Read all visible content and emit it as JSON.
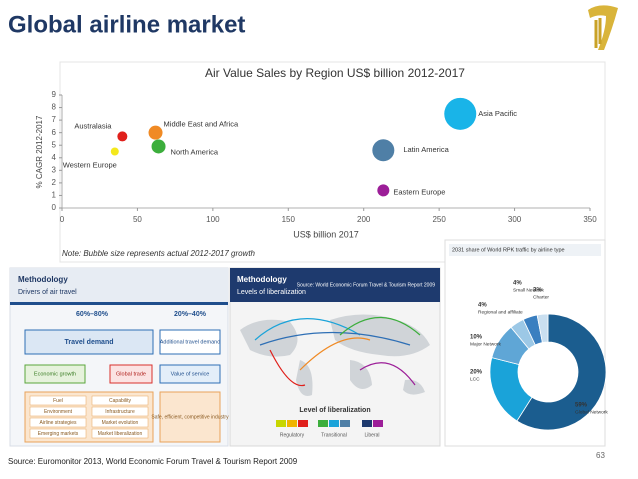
{
  "header": {
    "title": "Global airline market"
  },
  "chart_data": [
    {
      "type": "scatter",
      "title": "Air Value Sales by Region US$ billion 2012-2017",
      "x_label": "US$ billion 2017",
      "y_label": "% CAGR 2012-2017",
      "note": "Note: Bubble size represents actual 2012-2017 growth",
      "xlim": [
        0,
        350
      ],
      "xticks": [
        0,
        50,
        100,
        150,
        200,
        250,
        300,
        350
      ],
      "ylim": [
        0,
        9
      ],
      "yticks": [
        0,
        1,
        2,
        3,
        4,
        5,
        6,
        7,
        8,
        9
      ],
      "series": [
        {
          "name": "Australasia",
          "color": "#e0201b",
          "x": [
            40
          ],
          "values": [
            5.7
          ],
          "sizes": [
            5
          ]
        },
        {
          "name": "Middle East and Africa",
          "color": "#f08a24",
          "x": [
            62
          ],
          "values": [
            6.0
          ],
          "sizes": [
            7
          ]
        },
        {
          "name": "North America",
          "color": "#3cae3c",
          "x": [
            64
          ],
          "values": [
            4.9
          ],
          "sizes": [
            7
          ]
        },
        {
          "name": "Western Europe",
          "color": "#f4e81c",
          "x": [
            35
          ],
          "values": [
            4.5
          ],
          "sizes": [
            4
          ]
        },
        {
          "name": "Asia Pacific",
          "color": "#19b4e8",
          "x": [
            264
          ],
          "values": [
            7.5
          ],
          "sizes": [
            16
          ]
        },
        {
          "name": "Latin America",
          "color": "#4f7fa6",
          "x": [
            213
          ],
          "values": [
            4.6
          ],
          "sizes": [
            11
          ]
        },
        {
          "name": "Eastern Europe",
          "color": "#9c1e98",
          "x": [
            213
          ],
          "values": [
            1.4
          ],
          "sizes": [
            6
          ]
        }
      ]
    },
    {
      "type": "pie",
      "title": "2031 share of World RPK traffic by airline type",
      "categories": [
        "Global Network",
        "LCC",
        "Major Network",
        "Regional and affiliate",
        "Small Network",
        "Charter"
      ],
      "values": [
        59,
        20,
        10,
        4,
        4,
        3
      ],
      "value_labels": [
        "59%",
        "20%",
        "10%",
        "4%",
        "4%",
        "3%"
      ],
      "colors": [
        "#1b5d8f",
        "#1aa3d9",
        "#5fa6d6",
        "#9cc8e6",
        "#3a7fc0",
        "#c9dff0"
      ]
    }
  ],
  "methodology_drivers": {
    "title": "Methodology",
    "subtitle": "Drivers of air travel",
    "share_left": "60%–80%",
    "share_right": "20%–40%",
    "main_left": "Travel demand",
    "main_right": "Additional travel demand",
    "drivers": [
      "Economic growth",
      "Global trade",
      "Value of service"
    ],
    "factors": [
      "Fuel",
      "Capability",
      "Environment",
      "Infrastructure",
      "Airline strategies",
      "Market evolution",
      "Emerging markets",
      "Market liberalization"
    ],
    "outcome": "Safe, efficient, competitive industry"
  },
  "methodology_liberalization": {
    "title": "Methodology",
    "subtitle": "Levels of liberalization",
    "source": "Source: World Economic Forum Travel & Tourism Report 2009",
    "legend_title": "Level of liberalization",
    "legend": [
      "Regulatory",
      "Transitional",
      "Liberal"
    ]
  },
  "source": "Source: Euromonitor 2013, World Economic Forum Travel & Tourism Report 2009",
  "page_number": "63"
}
